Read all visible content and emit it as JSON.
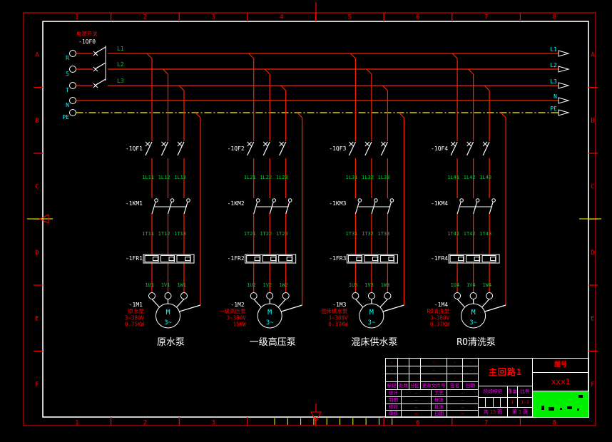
{
  "colors": {
    "background": "#000000",
    "frame_red": "#ff0000",
    "frame_white": "#ffffff",
    "wire": "#ff2200",
    "pe_yellow": "#ffff00",
    "label_green": "#00cc33",
    "label_cyan": "#00ffff",
    "label_white": "#ffffff",
    "spec_red": "#ff0000",
    "tb_magenta": "#ff00ff",
    "logo_green": "#00ee00"
  },
  "sheet": {
    "column_zones": [
      "1",
      "2",
      "3",
      "4",
      "5",
      "6",
      "7",
      "8"
    ],
    "row_zones": [
      "A",
      "B",
      "C",
      "D",
      "E",
      "F"
    ]
  },
  "incoming": {
    "switch_label": "电源开关",
    "device": "-1QF0",
    "terminals": [
      "R",
      "S",
      "T",
      "N",
      "PE"
    ],
    "phase_labels": [
      "L1",
      "L2",
      "L3"
    ],
    "outgoing_labels": [
      "L1",
      "L2",
      "L3",
      "N",
      "PE"
    ]
  },
  "branches": [
    {
      "breaker": "-1QF1",
      "wires_top": [
        "1L11",
        "1L12",
        "1L13"
      ],
      "contactor": "-1KM1",
      "wires_mid": [
        "1T11",
        "1T12",
        "1T13"
      ],
      "relay": "-1FR1",
      "wires_bottom": [
        "1U1",
        "1V1",
        "1W1"
      ],
      "motor_tag": "-1M1",
      "motor_letter": "M",
      "motor_phase": "3~",
      "spec_lines": [
        "原水泵",
        "3~380V",
        "0.75KW"
      ],
      "name": "原水泵"
    },
    {
      "breaker": "-1QF2",
      "wires_top": [
        "1L21",
        "1L22",
        "1L23"
      ],
      "contactor": "-1KM2",
      "wires_mid": [
        "1T21",
        "1T22",
        "1T23"
      ],
      "relay": "-1FR2",
      "wires_bottom": [
        "1U2",
        "1V2",
        "1W2"
      ],
      "motor_tag": "-1M2",
      "motor_letter": "M",
      "motor_phase": "3~",
      "spec_lines": [
        "一级高压泵",
        "3~380V",
        "15KW"
      ],
      "name": "一级高压泵"
    },
    {
      "breaker": "-1QF3",
      "wires_top": [
        "1L31",
        "1L32",
        "1L33"
      ],
      "contactor": "-1KM3",
      "wires_mid": [
        "1T31",
        "1T32",
        "1T33"
      ],
      "relay": "-1FR3",
      "wires_bottom": [
        "1U3",
        "1V3",
        "1W3"
      ],
      "motor_tag": "-1M3",
      "motor_letter": "M",
      "motor_phase": "3~",
      "spec_lines": [
        "混床供水泵",
        "3~380V",
        "0.37KW"
      ],
      "name": "混床供水泵"
    },
    {
      "breaker": "-1QF4",
      "wires_top": [
        "1L41",
        "1L42",
        "1L43"
      ],
      "contactor": "-1KM4",
      "wires_mid": [
        "1T41",
        "1T42",
        "1T43"
      ],
      "relay": "-1FR4",
      "wires_bottom": [
        "1U4",
        "1V4",
        "1W4"
      ],
      "motor_tag": "-1M4",
      "motor_letter": "M",
      "motor_phase": "3~",
      "spec_lines": [
        "RO清洗泵",
        "3~380V",
        "0.37KW"
      ],
      "name": "RO清洗泵"
    }
  ],
  "title_block": {
    "title": "主回路1",
    "drawing_no_label": "图号",
    "drawing_no": "xxx1",
    "revision": {
      "headers": [
        "标记",
        "处数",
        "分区",
        "更改文件号",
        "签名",
        "日期"
      ],
      "rows": [
        [
          "-",
          "",
          "",
          "-",
          "-",
          "-"
        ],
        [
          "-",
          "",
          "",
          "-",
          "-",
          "-"
        ],
        [
          "-",
          "",
          "",
          "-",
          "-",
          "-"
        ]
      ]
    },
    "signatures": [
      [
        "设计",
        "—",
        "工艺",
        "—"
      ],
      [
        "制图",
        "—",
        "标准",
        "—"
      ],
      [
        "校对",
        "—",
        "批准",
        "—"
      ],
      [
        "审核",
        "—",
        "日期",
        "—"
      ]
    ],
    "stage": {
      "label": "阶段标记",
      "weight_label": "重量",
      "scale_label": "比例",
      "weight_value": "1",
      "scale_value": "1:1"
    },
    "pages": {
      "total_prefix": "共",
      "total": "15",
      "total_suffix": "页",
      "current_prefix": "第",
      "current": "1",
      "current_suffix": "页"
    }
  }
}
